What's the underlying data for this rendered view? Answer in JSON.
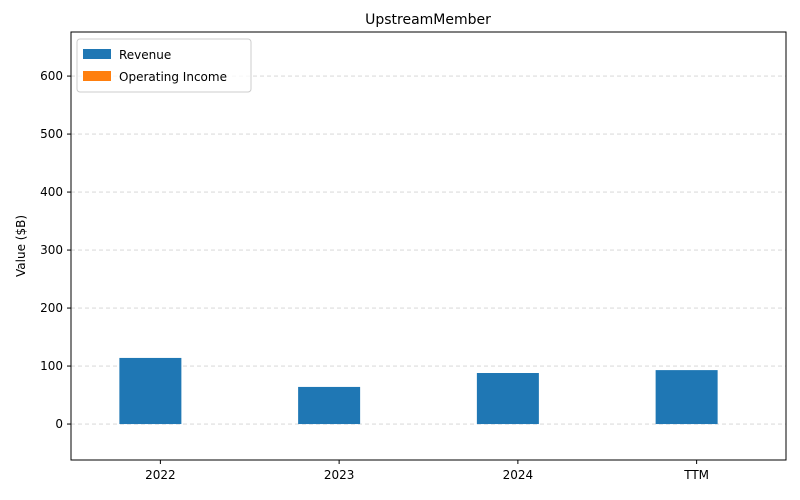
{
  "chart_data": {
    "type": "bar",
    "title": "UpstreamMember",
    "xlabel": "",
    "ylabel": "Value ($B)",
    "categories": [
      "2022",
      "2023",
      "2024",
      "TTM"
    ],
    "series": [
      {
        "name": "Revenue",
        "values": [
          114,
          64,
          88,
          93
        ],
        "color": "#1f77b4"
      },
      {
        "name": "Operating Income",
        "values": [
          0,
          0,
          0,
          0
        ],
        "color": "#ff7f0e"
      }
    ],
    "ylim": [
      -62,
      676
    ],
    "yticks": [
      0,
      100,
      200,
      300,
      400,
      500,
      600
    ],
    "grid": "y-dashed",
    "legend_position": "top-left"
  }
}
